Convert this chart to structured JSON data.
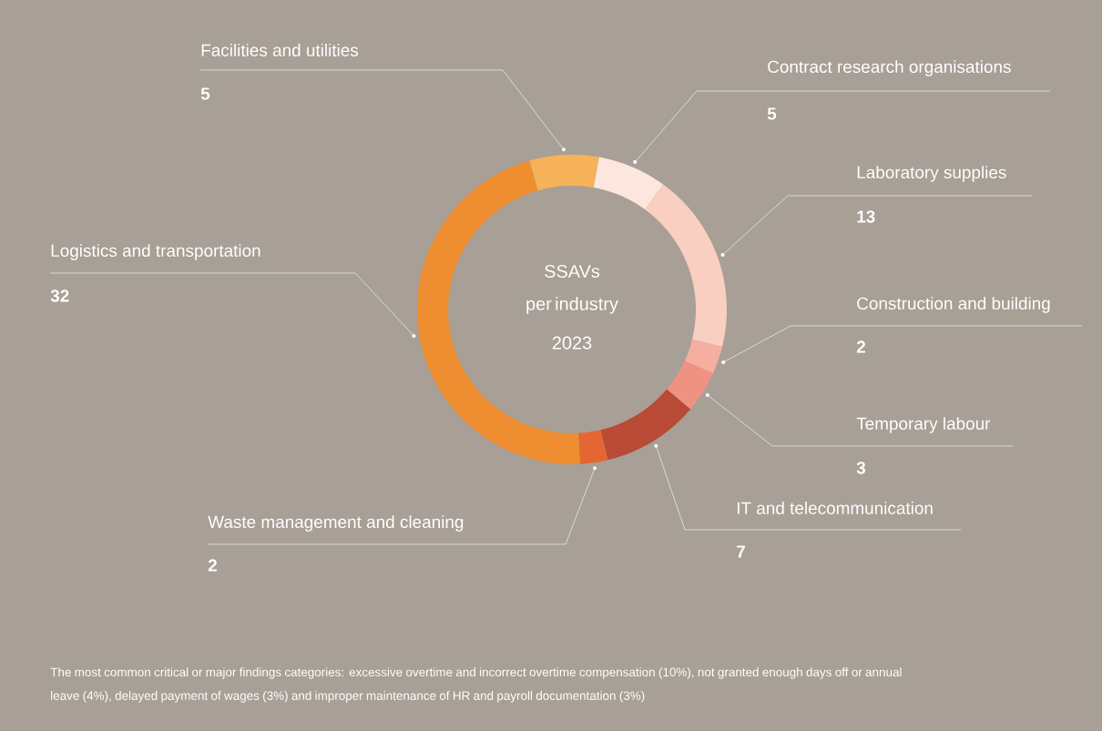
{
  "chart_data": {
    "type": "donut",
    "title": "SSAVs",
    "subtitle": "per industry 2023",
    "categories": [
      "Facilities and utilities",
      "Contract research organisations",
      "Laboratory supplies",
      "Construction and building",
      "Temporary labour",
      "IT and telecommunication",
      "Waste management and cleaning",
      "Logistics and transportation"
    ],
    "values": [
      5,
      5,
      13,
      2,
      3,
      7,
      2,
      32
    ],
    "colors": [
      "#f6b258",
      "#fde6dd",
      "#f8cfc0",
      "#f5aea0",
      "#f09282",
      "#b94a35",
      "#e56632",
      "#ee8e30"
    ],
    "data_labels": true,
    "annotations": [
      "The most common critical or major findings categories: excessive overtime and incorrect overtime compensation (10%), not granted enough days off or annual leave (4%), delayed payment of wages (3%) and improper maintenance of HR and payroll documentation (3%)"
    ]
  }
}
